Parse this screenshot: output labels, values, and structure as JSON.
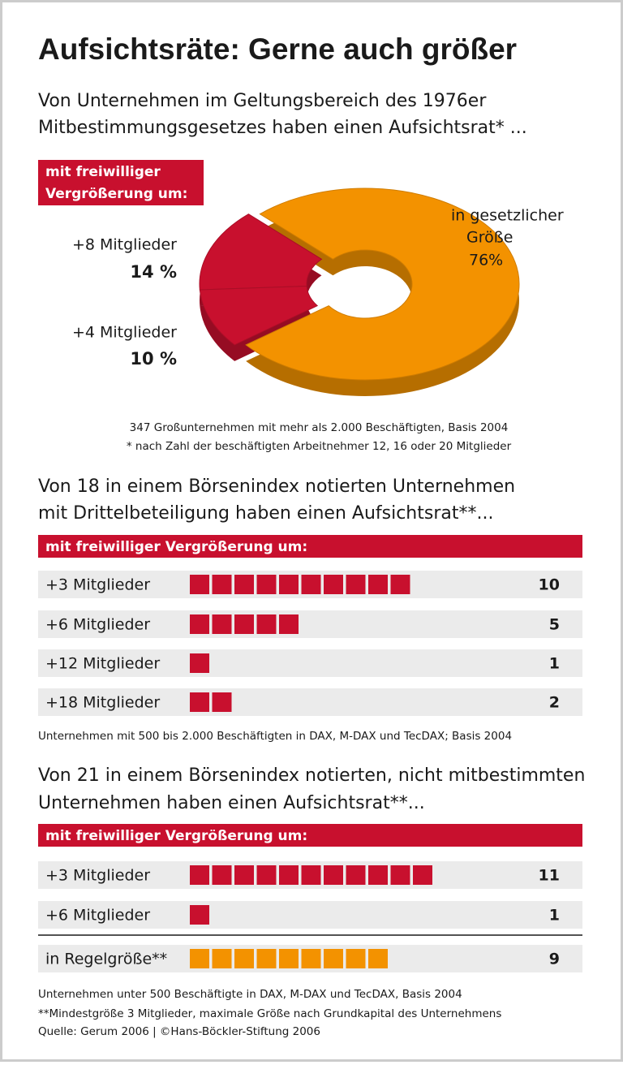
{
  "title": "Aufsichtsräte: Gerne auch größer",
  "chart_data": [
    {
      "type": "donut",
      "title": [
        "Von Unternehmen im Geltungsbereich des 1976er",
        "Mitbestimmungsgesetzes haben einen Aufsichtsrat* ..."
      ],
      "group_label": [
        "mit freiwilliger",
        "Vergrößerung um:"
      ],
      "categories": [
        [
          "+8 Mitglieder"
        ],
        [
          "+4 Mitglieder"
        ],
        [
          "in gesetzlicher",
          "Größe"
        ]
      ],
      "values": [
        14,
        10,
        76
      ],
      "value_labels": [
        "14 %",
        "10 %",
        "76%"
      ],
      "colors": [
        "#c8102e",
        "#c8102e",
        "#f39200"
      ],
      "notes": [
        "347 Großunternehmen mit mehr als 2.000 Beschäftigten, Basis 2004",
        "* nach Zahl der beschäftigten Arbeitnehmer 12, 16 oder 20 Mitglieder"
      ]
    },
    {
      "type": "pictogram",
      "title": [
        "Von 18 in einem Börsenindex notierten Unternehmen",
        "mit Drittelbeteiligung haben einen Aufsichtsrat**..."
      ],
      "group_label": "mit freiwilliger Vergrößerung um:",
      "categories": [
        "+3 Mitglieder",
        "+6 Mitglieder",
        "+12 Mitglieder",
        "+18 Mitglieder"
      ],
      "values": [
        10,
        5,
        1,
        2
      ],
      "colors": [
        "#c8102e",
        "#c8102e",
        "#c8102e",
        "#c8102e"
      ],
      "notes": [
        "Unternehmen mit 500 bis 2.000 Beschäftigten in DAX, M-DAX und TecDAX; Basis 2004"
      ]
    },
    {
      "type": "pictogram",
      "title": [
        "Von 21 in einem Börsenindex notierten, nicht mitbestimmten",
        "Unternehmen haben einen Aufsichtsrat**..."
      ],
      "group_label": "mit freiwilliger Vergrößerung um:",
      "categories": [
        "+3 Mitglieder",
        "+6 Mitglieder",
        "in Regelgröße**"
      ],
      "values": [
        11,
        1,
        9
      ],
      "colors": [
        "#c8102e",
        "#c8102e",
        "#f39200"
      ],
      "notes": [
        "Unternehmen unter 500 Beschäftigte in DAX, M-DAX und TecDAX, Basis 2004",
        "**Mindestgröße 3 Mitglieder, maximale Größe nach Grundkapital des Unternehmens"
      ]
    }
  ],
  "source": "Quelle: Gerum 2006 | ©Hans-Böckler-Stiftung 2006"
}
